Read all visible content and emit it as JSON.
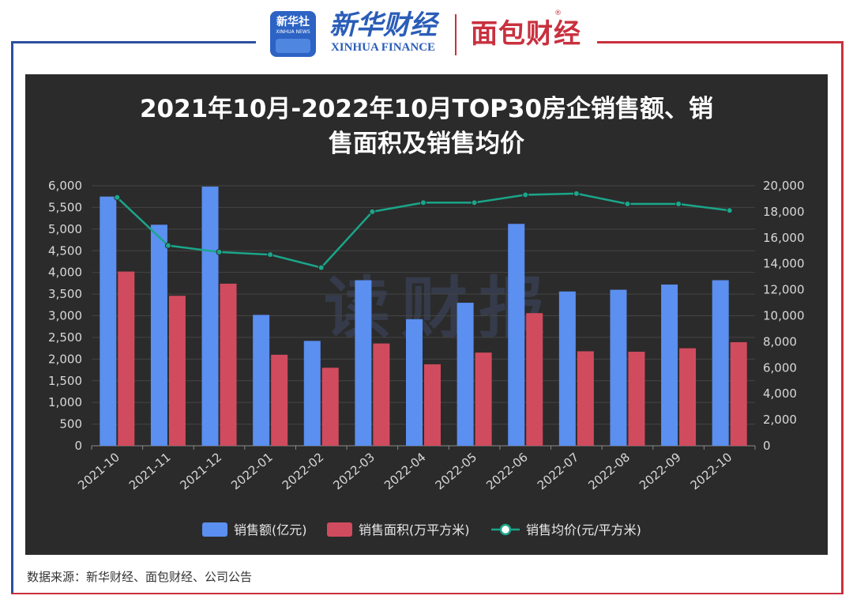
{
  "header": {
    "xinhua_badge": "新华社",
    "xinhua_badge_en": "XINHUA NEWS",
    "xinhua_finance_cn": "新华财经",
    "xinhua_finance_en": "XINHUA FINANCE",
    "mianbao": "面包财经"
  },
  "watermark": "读财报",
  "source": "数据来源：新华财经、面包财经、公司公告",
  "colors": {
    "panel_bg": "#2b2b2b",
    "sales_amount": "#5b8ff0",
    "sales_area": "#d14b5e",
    "avg_price": "#1aa68a",
    "frame_blue": "#2c4f9e",
    "frame_red": "#c9303e"
  },
  "chart_data": {
    "type": "bar",
    "title": "2021年10月-2022年10月TOP30房企销售额、销售面积及销售均价",
    "title_lines": [
      "2021年10月-2022年10月TOP30房企销售额、销",
      "售面积及销售均价"
    ],
    "categories": [
      "2021-10",
      "2021-11",
      "2021-12",
      "2022-01",
      "2022-02",
      "2022-03",
      "2022-04",
      "2022-05",
      "2022-06",
      "2022-07",
      "2022-08",
      "2022-09",
      "2022-10"
    ],
    "series": [
      {
        "name": "销售额(亿元)",
        "type": "bar",
        "axis": "left",
        "values": [
          5750,
          5100,
          5980,
          3020,
          2420,
          3820,
          2920,
          3300,
          5120,
          3560,
          3600,
          3720,
          3820
        ]
      },
      {
        "name": "销售面积(万平方米)",
        "type": "bar",
        "axis": "left",
        "values": [
          4020,
          3460,
          3740,
          2100,
          1800,
          2360,
          1880,
          2150,
          3060,
          2180,
          2170,
          2250,
          2390
        ]
      },
      {
        "name": "销售均价(元/平方米)",
        "type": "line",
        "axis": "right",
        "values": [
          19100,
          15400,
          14900,
          14700,
          13700,
          18000,
          18700,
          18700,
          19300,
          19400,
          18600,
          18600,
          18100
        ]
      }
    ],
    "y_left": {
      "min": 0,
      "max": 6000,
      "ticks": [
        "0",
        "500",
        "1,000",
        "1,500",
        "2,000",
        "2,500",
        "3,000",
        "3,500",
        "4,000",
        "4,500",
        "5,000",
        "5,500",
        "6,000"
      ]
    },
    "y_right": {
      "min": 0,
      "max": 20000,
      "ticks": [
        "0",
        "2,000",
        "4,000",
        "6,000",
        "8,000",
        "10,000",
        "12,000",
        "14,000",
        "16,000",
        "18,000",
        "20,000"
      ]
    },
    "legend_position": "bottom-center",
    "grid": true
  }
}
